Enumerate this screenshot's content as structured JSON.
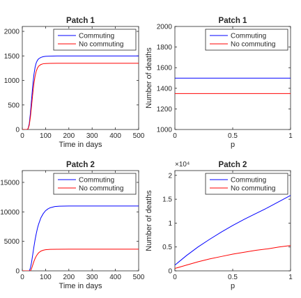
{
  "colors": {
    "commuting": "#0000ff",
    "no_commuting": "#ff0000",
    "axis": "#262626"
  },
  "chart_data": [
    {
      "type": "line",
      "title": "Patch 1",
      "xlabel": "Time in days",
      "ylabel": "",
      "xlim": [
        0,
        500
      ],
      "ylim": [
        0,
        2100
      ],
      "xticks": [
        0,
        100,
        200,
        300,
        400,
        500
      ],
      "yticks": [
        0,
        500,
        1000,
        1500,
        2000
      ],
      "grid": false,
      "legend_position": "top-right",
      "series": [
        {
          "name": "Commuting",
          "color": "#0000ff",
          "x": [
            0,
            20,
            25,
            30,
            35,
            40,
            45,
            50,
            55,
            60,
            65,
            70,
            80,
            90,
            100,
            120,
            150,
            200,
            300,
            400,
            500
          ],
          "y": [
            0,
            0,
            20,
            120,
            340,
            620,
            900,
            1120,
            1270,
            1360,
            1410,
            1440,
            1470,
            1485,
            1492,
            1496,
            1498,
            1498,
            1498,
            1498,
            1498
          ]
        },
        {
          "name": "No commuting",
          "color": "#ff0000",
          "x": [
            0,
            20,
            25,
            30,
            35,
            40,
            45,
            50,
            55,
            60,
            65,
            70,
            80,
            90,
            100,
            120,
            150,
            200,
            300,
            400,
            500
          ],
          "y": [
            0,
            0,
            15,
            90,
            260,
            490,
            730,
            940,
            1090,
            1190,
            1250,
            1290,
            1325,
            1340,
            1345,
            1348,
            1349,
            1349,
            1349,
            1349,
            1349
          ]
        }
      ]
    },
    {
      "type": "line",
      "title": "Patch 1",
      "xlabel": "p",
      "ylabel": "Number of deaths",
      "xlim": [
        0,
        1
      ],
      "ylim": [
        1000,
        2000
      ],
      "xticks": [
        0,
        0.5,
        1
      ],
      "yticks": [
        1000,
        1200,
        1400,
        1600,
        1800,
        2000
      ],
      "grid": false,
      "legend_position": "top-right",
      "series": [
        {
          "name": "Commuting",
          "color": "#0000ff",
          "x": [
            0,
            1
          ],
          "y": [
            1498,
            1498
          ]
        },
        {
          "name": "No commuting",
          "color": "#ff0000",
          "x": [
            0,
            1
          ],
          "y": [
            1349,
            1349
          ]
        }
      ]
    },
    {
      "type": "line",
      "title": "Patch 2",
      "xlabel": "Time in days",
      "ylabel": "",
      "xlim": [
        0,
        500
      ],
      "ylim": [
        0,
        17000
      ],
      "xticks": [
        0,
        100,
        200,
        300,
        400,
        500
      ],
      "yticks": [
        0,
        5000,
        10000,
        15000
      ],
      "grid": false,
      "legend_position": "top-right",
      "series": [
        {
          "name": "Commuting",
          "color": "#0000ff",
          "x": [
            0,
            30,
            35,
            40,
            45,
            50,
            55,
            60,
            65,
            70,
            80,
            90,
            100,
            110,
            120,
            140,
            160,
            200,
            250,
            300,
            400,
            500
          ],
          "y": [
            0,
            0,
            500,
            1500,
            2800,
            4100,
            5300,
            6300,
            7200,
            7900,
            9000,
            9700,
            10200,
            10500,
            10700,
            10900,
            10960,
            11000,
            11000,
            11000,
            11000,
            11000
          ]
        },
        {
          "name": "No commuting",
          "color": "#ff0000",
          "x": [
            0,
            35,
            40,
            45,
            50,
            55,
            60,
            65,
            70,
            80,
            90,
            100,
            120,
            150,
            200,
            300,
            400,
            500
          ],
          "y": [
            0,
            0,
            400,
            1000,
            1600,
            2100,
            2500,
            2800,
            3050,
            3350,
            3500,
            3580,
            3640,
            3660,
            3670,
            3670,
            3670,
            3670
          ]
        }
      ]
    },
    {
      "type": "line",
      "title": "Patch 2",
      "xlabel": "p",
      "ylabel": "Number of deaths",
      "multiplier": "×10⁴",
      "xlim": [
        0,
        1
      ],
      "ylim": [
        0,
        2.1
      ],
      "xticks": [
        0,
        0.5,
        1
      ],
      "yticks": [
        0,
        0.5,
        1,
        1.5,
        2
      ],
      "grid": false,
      "legend_position": "top-right",
      "series": [
        {
          "name": "Commuting",
          "color": "#0000ff",
          "x": [
            0,
            0.1,
            0.2,
            0.3,
            0.4,
            0.5,
            0.6,
            0.7,
            0.8,
            0.9,
            1.0
          ],
          "y": [
            0.12,
            0.32,
            0.5,
            0.66,
            0.81,
            0.95,
            1.08,
            1.2,
            1.32,
            1.45,
            1.58
          ]
        },
        {
          "name": "No commuting",
          "color": "#ff0000",
          "x": [
            0,
            0.1,
            0.2,
            0.3,
            0.4,
            0.5,
            0.6,
            0.7,
            0.8,
            0.9,
            1.0
          ],
          "y": [
            0.05,
            0.12,
            0.19,
            0.25,
            0.3,
            0.35,
            0.39,
            0.43,
            0.46,
            0.5,
            0.53
          ]
        }
      ]
    }
  ]
}
